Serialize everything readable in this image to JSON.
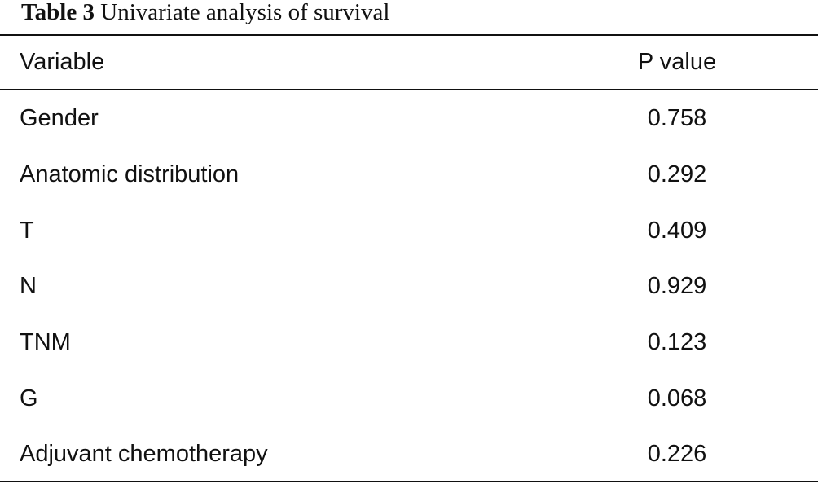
{
  "caption": {
    "label": "Table 3",
    "text": "Univariate analysis of survival"
  },
  "table": {
    "headers": {
      "variable": "Variable",
      "p_value": "P value"
    },
    "rows": [
      {
        "variable": "Gender",
        "p_value": "0.758"
      },
      {
        "variable": "Anatomic distribution",
        "p_value": "0.292"
      },
      {
        "variable": "T",
        "p_value": "0.409"
      },
      {
        "variable": "N",
        "p_value": "0.929"
      },
      {
        "variable": "TNM",
        "p_value": "0.123"
      },
      {
        "variable": "G",
        "p_value": "0.068"
      },
      {
        "variable": "Adjuvant chemotherapy",
        "p_value": "0.226"
      }
    ]
  }
}
